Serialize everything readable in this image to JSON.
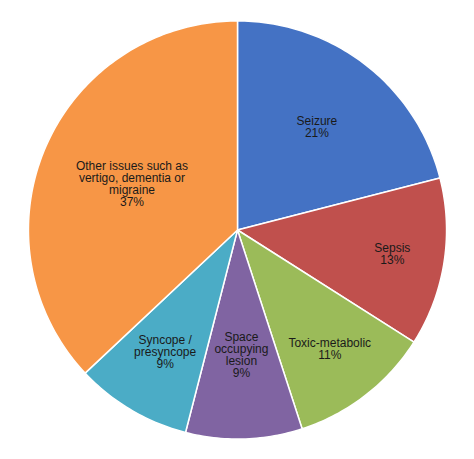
{
  "chart_data": {
    "type": "pie",
    "categories": [
      "Seizure",
      "Sepsis",
      "Toxic-metabolic",
      "Space\noccupying\nlesion",
      "Syncope /\npresyncope",
      "Other issues such as\nvertigo, dementia or\nmigraine"
    ],
    "values": [
      21,
      13,
      11,
      9,
      9,
      37
    ],
    "value_labels": [
      "21%",
      "13%",
      "11%",
      "9%",
      "9%",
      "37%"
    ],
    "colors": [
      "#4472C4",
      "#C0504D",
      "#9BBB59",
      "#8064A2",
      "#4BACC6",
      "#F79646"
    ],
    "data_labels": true,
    "tick_labels": false
  }
}
